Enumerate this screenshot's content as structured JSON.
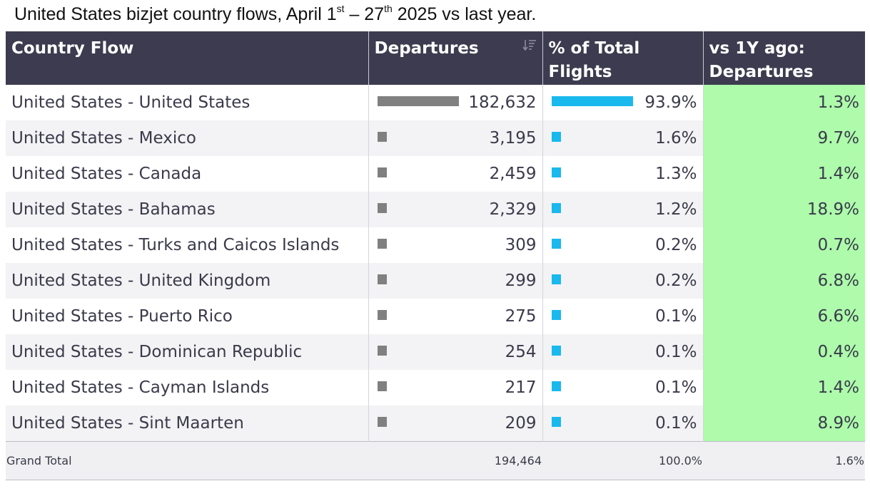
{
  "title": {
    "prefix": "United States bizjet country flows, April 1",
    "sup1": "st",
    "middle": " – 27",
    "sup2": "th",
    "suffix": " 2025 vs last year."
  },
  "table": {
    "headers": {
      "country_flow": "Country Flow",
      "departures": "Departures",
      "pct_total_line1": "% of Total",
      "pct_total_line2": "Flights",
      "yoy_line1": "vs 1Y ago:",
      "yoy_line2": "Departures"
    },
    "rows": [
      {
        "flow": "United States - United States",
        "departures": "182,632",
        "departures_value": 182632,
        "pct_total": "93.9%",
        "pct_value": 93.9,
        "yoy": "1.3%"
      },
      {
        "flow": "United States - Mexico",
        "departures": "3,195",
        "departures_value": 3195,
        "pct_total": "1.6%",
        "pct_value": 1.6,
        "yoy": "9.7%"
      },
      {
        "flow": "United States - Canada",
        "departures": "2,459",
        "departures_value": 2459,
        "pct_total": "1.3%",
        "pct_value": 1.3,
        "yoy": "1.4%"
      },
      {
        "flow": "United States - Bahamas",
        "departures": "2,329",
        "departures_value": 2329,
        "pct_total": "1.2%",
        "pct_value": 1.2,
        "yoy": "18.9%"
      },
      {
        "flow": "United States - Turks and Caicos Islands",
        "departures": "309",
        "departures_value": 309,
        "pct_total": "0.2%",
        "pct_value": 0.2,
        "yoy": "0.7%"
      },
      {
        "flow": "United States - United Kingdom",
        "departures": "299",
        "departures_value": 299,
        "pct_total": "0.2%",
        "pct_value": 0.2,
        "yoy": "6.8%"
      },
      {
        "flow": "United States - Puerto Rico",
        "departures": "275",
        "departures_value": 275,
        "pct_total": "0.1%",
        "pct_value": 0.1,
        "yoy": "6.6%"
      },
      {
        "flow": "United States - Dominican Republic",
        "departures": "254",
        "departures_value": 254,
        "pct_total": "0.1%",
        "pct_value": 0.1,
        "yoy": "0.4%"
      },
      {
        "flow": "United States - Cayman Islands",
        "departures": "217",
        "departures_value": 217,
        "pct_total": "0.1%",
        "pct_value": 0.1,
        "yoy": "1.4%"
      },
      {
        "flow": "United States - Sint Maarten",
        "departures": "209",
        "departures_value": 209,
        "pct_total": "0.1%",
        "pct_value": 0.1,
        "yoy": "8.9%"
      }
    ],
    "total": {
      "label": "Grand Total",
      "departures": "194,464",
      "pct_total": "100.0%",
      "yoy": "1.6%"
    }
  },
  "colors": {
    "header_bg": "#3d3b4f",
    "departures_bar": "#808080",
    "pct_bar": "#19b9ee",
    "yoy_highlight": "#adfbab"
  },
  "icons": {
    "sort": "sort-descending-icon"
  }
}
